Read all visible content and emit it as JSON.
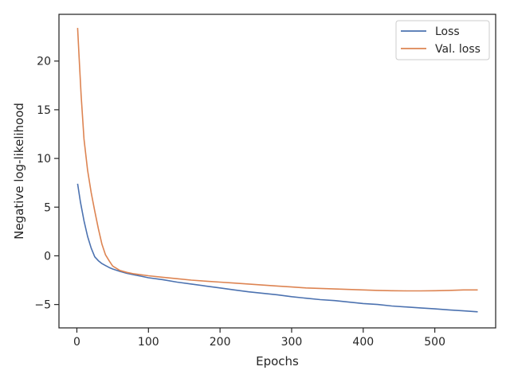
{
  "chart_data": {
    "type": "line",
    "title": "",
    "xlabel": "Epochs",
    "ylabel": "Negative log-likelihood",
    "xlim": [
      -25,
      585
    ],
    "ylim": [
      -7.4,
      24.8
    ],
    "xticks": [
      0,
      100,
      200,
      300,
      400,
      500
    ],
    "xtick_labels": [
      "0",
      "100",
      "200",
      "300",
      "400",
      "500"
    ],
    "yticks": [
      -5,
      0,
      5,
      10,
      15,
      20
    ],
    "ytick_labels": [
      "−5",
      "0",
      "5",
      "10",
      "15",
      "20"
    ],
    "grid": false,
    "legend_position": "top-right",
    "series": [
      {
        "name": "Loss",
        "color": "#4c72b0",
        "x": [
          1,
          5,
          10,
          15,
          20,
          25,
          30,
          35,
          40,
          45,
          50,
          60,
          70,
          80,
          90,
          100,
          120,
          140,
          160,
          180,
          200,
          220,
          240,
          260,
          280,
          300,
          320,
          340,
          360,
          380,
          400,
          420,
          440,
          460,
          480,
          500,
          520,
          540,
          550,
          560
        ],
        "values": [
          7.4,
          5.5,
          3.6,
          2.0,
          0.8,
          -0.1,
          -0.5,
          -0.8,
          -1.0,
          -1.2,
          -1.35,
          -1.6,
          -1.8,
          -1.95,
          -2.1,
          -2.25,
          -2.45,
          -2.7,
          -2.9,
          -3.1,
          -3.3,
          -3.5,
          -3.7,
          -3.85,
          -4.0,
          -4.2,
          -4.35,
          -4.5,
          -4.6,
          -4.75,
          -4.9,
          -5.0,
          -5.15,
          -5.25,
          -5.35,
          -5.45,
          -5.55,
          -5.65,
          -5.7,
          -5.75
        ]
      },
      {
        "name": "Val. loss",
        "color": "#dd8452",
        "x": [
          1,
          3,
          6,
          10,
          15,
          20,
          25,
          30,
          35,
          40,
          45,
          50,
          60,
          70,
          80,
          90,
          100,
          120,
          140,
          160,
          180,
          200,
          220,
          240,
          260,
          280,
          300,
          320,
          340,
          360,
          380,
          400,
          420,
          440,
          460,
          480,
          500,
          520,
          540,
          560
        ],
        "values": [
          23.4,
          20.5,
          16.5,
          12.0,
          8.8,
          6.5,
          4.6,
          2.8,
          1.2,
          0.1,
          -0.5,
          -1.05,
          -1.5,
          -1.7,
          -1.85,
          -1.95,
          -2.05,
          -2.2,
          -2.35,
          -2.5,
          -2.6,
          -2.7,
          -2.8,
          -2.9,
          -3.0,
          -3.1,
          -3.2,
          -3.3,
          -3.35,
          -3.4,
          -3.45,
          -3.5,
          -3.55,
          -3.58,
          -3.6,
          -3.6,
          -3.58,
          -3.55,
          -3.5,
          -3.5
        ]
      }
    ]
  }
}
